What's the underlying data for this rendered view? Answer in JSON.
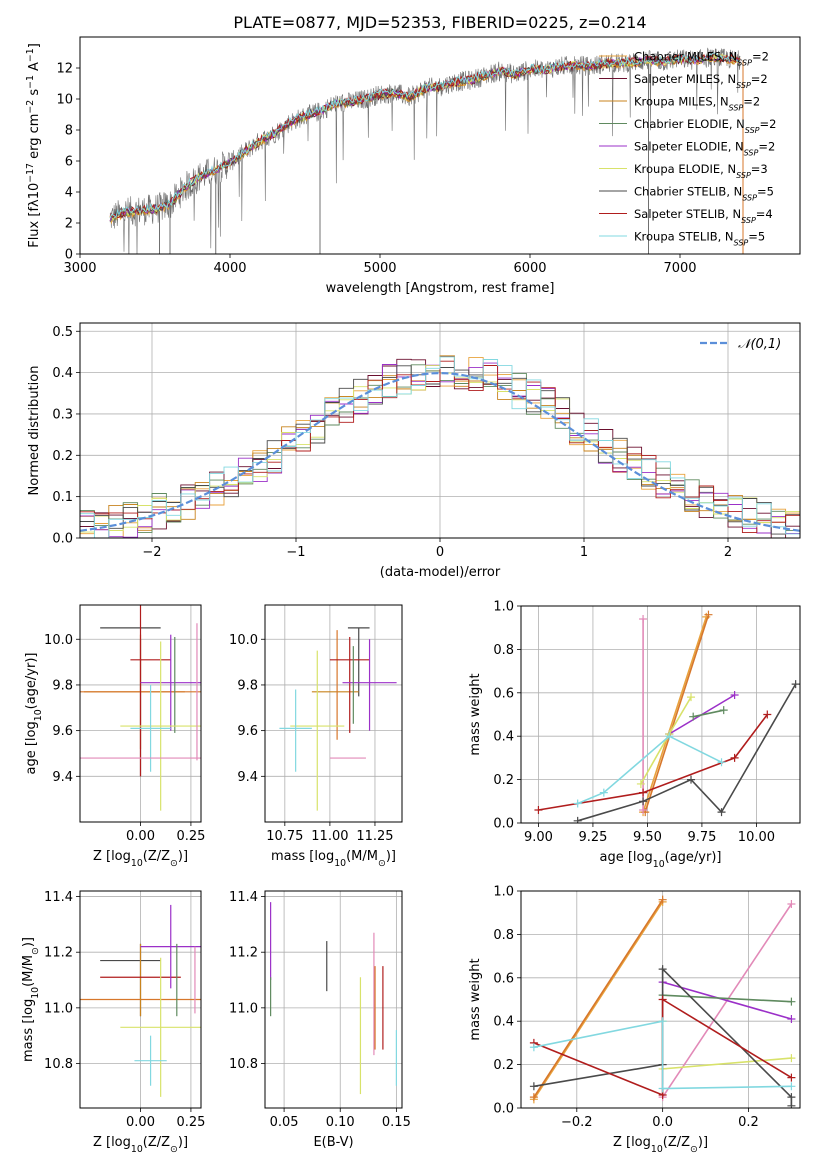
{
  "figure_title": "PLATE=0877, MJD=52353, FIBERID=0225, z=0.214",
  "palette": [
    "#e8a23d",
    "#6a0f2e",
    "#c8831e",
    "#5f8a5f",
    "#9b30c8",
    "#d8e26a",
    "#4a4a4a",
    "#b01d1d",
    "#82d8e0",
    "#e28ab8",
    "#d7772b",
    "#707070"
  ],
  "chart_data": [
    {
      "id": "spectrum",
      "type": "line",
      "title": "PLATE=0877, MJD=52353, FIBERID=0225, z=0.214",
      "xlabel": "wavelength [Angstrom, rest frame]",
      "ylabel": "Flux [fλ10⁻¹⁷ erg cm⁻² s⁻¹ A⁻¹]",
      "xlim": [
        3000,
        7800
      ],
      "ylim": [
        0,
        14
      ],
      "xticks": [
        3000,
        4000,
        5000,
        6000,
        7000
      ],
      "yticks": [
        0,
        2,
        4,
        6,
        8,
        10,
        12
      ],
      "observed_spectrum": {
        "color": "#707070",
        "x": [
          3200,
          3300,
          3400,
          3500,
          3600,
          3700,
          3800,
          3900,
          4000,
          4100,
          4200,
          4300,
          4400,
          4500,
          4600,
          4700,
          4800,
          4900,
          5000,
          5100,
          5200,
          5300,
          5400,
          5500,
          5600,
          5700,
          5800,
          5900,
          6000,
          6100,
          6200,
          6300,
          6400,
          6500,
          6600,
          6700,
          6800,
          6900,
          7000,
          7100,
          7200,
          7300,
          7400
        ],
        "y": [
          2.3,
          2.7,
          2.8,
          2.9,
          3.2,
          4.3,
          5.0,
          5.4,
          5.9,
          6.6,
          7.3,
          7.8,
          8.5,
          8.9,
          9.2,
          9.7,
          9.8,
          10.0,
          10.3,
          10.4,
          10.1,
          10.7,
          10.8,
          11.1,
          11.2,
          11.5,
          11.8,
          11.6,
          11.9,
          11.9,
          12.1,
          12.2,
          12.1,
          12.3,
          12.3,
          12.4,
          12.5,
          12.4,
          12.6,
          12.5,
          12.7,
          12.6,
          12.5
        ]
      },
      "series": [
        {
          "name": "Chabrier MILES, N_SSP=2",
          "color": "#e8a23d"
        },
        {
          "name": "Salpeter MILES, N_SSP=2",
          "color": "#6a0f2e"
        },
        {
          "name": "Kroupa MILES, N_SSP=2",
          "color": "#c8831e"
        },
        {
          "name": "Chabrier ELODIE, N_SSP=2",
          "color": "#5f8a5f"
        },
        {
          "name": "Salpeter ELODIE, N_SSP=2",
          "color": "#9b30c8"
        },
        {
          "name": "Kroupa ELODIE, N_SSP=3",
          "color": "#d8e26a"
        },
        {
          "name": "Chabrier STELIB, N_SSP=5",
          "color": "#4a4a4a"
        },
        {
          "name": "Salpeter STELIB, N_SSP=4",
          "color": "#b01d1d"
        },
        {
          "name": "Kroupa STELIB, N_SSP=5",
          "color": "#82d8e0"
        }
      ],
      "legend_position": "top-right"
    },
    {
      "id": "residuals",
      "type": "line",
      "xlabel": "(data-model)/error",
      "ylabel": "Normed distribution",
      "xlim": [
        -2.5,
        2.5
      ],
      "ylim": [
        0,
        0.52
      ],
      "xticks": [
        -2,
        -1,
        0,
        1,
        2
      ],
      "yticks": [
        0.0,
        0.1,
        0.2,
        0.3,
        0.4,
        0.5
      ],
      "reference": {
        "name": "𝒩(0,1)",
        "color": "#5b8fd9"
      },
      "histogram_bins": [
        -2.5,
        -2.4,
        -2.3,
        -2.2,
        -2.1,
        -2.0,
        -1.9,
        -1.8,
        -1.7,
        -1.6,
        -1.5,
        -1.4,
        -1.3,
        -1.2,
        -1.1,
        -1.0,
        -0.9,
        -0.8,
        -0.7,
        -0.6,
        -0.5,
        -0.4,
        -0.3,
        -0.2,
        -0.1,
        0.0,
        0.1,
        0.2,
        0.3,
        0.4,
        0.5,
        0.6,
        0.7,
        0.8,
        0.9,
        1.0,
        1.1,
        1.2,
        1.3,
        1.4,
        1.5,
        1.6,
        1.7,
        1.8,
        1.9,
        2.0,
        2.1,
        2.2,
        2.3,
        2.4,
        2.5
      ],
      "histogram_base": [
        0.03,
        0.035,
        0.04,
        0.045,
        0.055,
        0.065,
        0.075,
        0.09,
        0.105,
        0.12,
        0.14,
        0.16,
        0.18,
        0.2,
        0.225,
        0.25,
        0.27,
        0.3,
        0.32,
        0.34,
        0.355,
        0.375,
        0.39,
        0.4,
        0.405,
        0.41,
        0.405,
        0.4,
        0.39,
        0.375,
        0.355,
        0.34,
        0.32,
        0.3,
        0.27,
        0.25,
        0.225,
        0.2,
        0.18,
        0.16,
        0.14,
        0.12,
        0.105,
        0.09,
        0.075,
        0.065,
        0.055,
        0.045,
        0.035,
        0.03
      ],
      "legend_position": "top-right"
    },
    {
      "id": "age-vs-Z",
      "type": "scatter",
      "xlabel": "Z [log₁₀(Z/Z⊙)]",
      "ylabel": "age  [log₁₀(age/yr)]",
      "xlim": [
        -0.3,
        0.3
      ],
      "ylim": [
        9.2,
        10.15
      ],
      "xticks": [
        0.0,
        0.25
      ],
      "yticks": [
        9.4,
        9.6,
        9.8,
        10.0
      ],
      "points": [
        {
          "x": 0.0,
          "y": 9.7,
          "xerr": 0.0,
          "yerr": 0.3,
          "color": "#707070"
        },
        {
          "x": -0.05,
          "y": 10.05,
          "xerr": 0.15,
          "yerr": 0.0,
          "color": "#4a4a4a"
        },
        {
          "x": -0.03,
          "y": 9.77,
          "xerr": 0.25,
          "yerr": 0.0,
          "color": "#c8831e"
        },
        {
          "x": 0.0,
          "y": 9.77,
          "xerr": 0.3,
          "yerr": 0.25,
          "color": "#d7772b"
        },
        {
          "x": 0.05,
          "y": 9.91,
          "xerr": 0.1,
          "yerr": 0.0,
          "color": "#b01d1d"
        },
        {
          "x": 0.0,
          "y": 9.8,
          "xerr": 0.0,
          "yerr": 0.4,
          "color": "#b01d1d"
        },
        {
          "x": 0.15,
          "y": 9.81,
          "xerr": 0.15,
          "yerr": 0.21,
          "color": "#9b30c8"
        },
        {
          "x": 0.17,
          "y": 9.8,
          "xerr": 0.0,
          "yerr": 0.21,
          "color": "#5f8a5f"
        },
        {
          "x": 0.1,
          "y": 9.62,
          "xerr": 0.2,
          "yerr": 0.37,
          "color": "#d8e26a"
        },
        {
          "x": 0.05,
          "y": 9.61,
          "xerr": 0.1,
          "yerr": 0.19,
          "color": "#82d8e0"
        },
        {
          "x": 0.0,
          "y": 9.48,
          "xerr": 0.3,
          "yerr": 0.0,
          "color": "#e28ab8"
        },
        {
          "x": 0.28,
          "y": 9.77,
          "xerr": 0.0,
          "yerr": 0.3,
          "color": "#e28ab8"
        }
      ]
    },
    {
      "id": "age-vs-mass",
      "type": "scatter",
      "xlabel": "mass [log₁₀(M/M⊙)]",
      "ylabel": "",
      "xlim": [
        10.64,
        11.4
      ],
      "ylim": [
        9.2,
        10.15
      ],
      "xticks": [
        10.75,
        11.0,
        11.25
      ],
      "yticks": [
        9.4,
        9.6,
        9.8,
        10.0
      ],
      "points": [
        {
          "x": 11.16,
          "y": 10.05,
          "xerr": 0.06,
          "yerr": 0.0,
          "color": "#4a4a4a"
        },
        {
          "x": 11.16,
          "y": 9.9,
          "xerr": 0.0,
          "yerr": 0.15,
          "color": "#4a4a4a"
        },
        {
          "x": 11.03,
          "y": 9.77,
          "xerr": 0.13,
          "yerr": 0.0,
          "color": "#c8831e"
        },
        {
          "x": 11.04,
          "y": 9.8,
          "xerr": 0.0,
          "yerr": 0.24,
          "color": "#d7772b"
        },
        {
          "x": 11.11,
          "y": 9.91,
          "xerr": 0.11,
          "yerr": 0.0,
          "color": "#b01d1d"
        },
        {
          "x": 11.11,
          "y": 9.8,
          "xerr": 0.0,
          "yerr": 0.21,
          "color": "#b01d1d"
        },
        {
          "x": 11.22,
          "y": 9.81,
          "xerr": 0.15,
          "yerr": 0.0,
          "color": "#9b30c8"
        },
        {
          "x": 11.22,
          "y": 9.8,
          "xerr": 0.0,
          "yerr": 0.2,
          "color": "#9b30c8"
        },
        {
          "x": 10.93,
          "y": 9.62,
          "xerr": 0.15,
          "yerr": 0.0,
          "color": "#d8e26a"
        },
        {
          "x": 10.93,
          "y": 9.6,
          "xerr": 0.0,
          "yerr": 0.35,
          "color": "#d8e26a"
        },
        {
          "x": 10.81,
          "y": 9.61,
          "xerr": 0.09,
          "yerr": 0.0,
          "color": "#82d8e0"
        },
        {
          "x": 10.81,
          "y": 9.6,
          "xerr": 0.0,
          "yerr": 0.18,
          "color": "#82d8e0"
        },
        {
          "x": 11.1,
          "y": 9.48,
          "xerr": 0.1,
          "yerr": 0.0,
          "color": "#e28ab8"
        },
        {
          "x": 11.13,
          "y": 9.8,
          "xerr": 0.0,
          "yerr": 0.17,
          "color": "#5f8a5f"
        }
      ]
    },
    {
      "id": "weight-vs-age",
      "type": "line",
      "xlabel": "age  [log₁₀(age/yr)]",
      "ylabel": "mass weight",
      "xlim": [
        8.92,
        10.2
      ],
      "ylim": [
        0.0,
        1.0
      ],
      "xticks": [
        9.0,
        9.25,
        9.5,
        9.75,
        10.0
      ],
      "yticks": [
        0.0,
        0.2,
        0.4,
        0.6,
        0.8,
        1.0
      ],
      "series": [
        {
          "color": "#e8a23d",
          "x": [
            9.48,
            9.77
          ],
          "y": [
            0.05,
            0.95
          ]
        },
        {
          "color": "#d7772b",
          "x": [
            9.49,
            9.78
          ],
          "y": [
            0.05,
            0.96
          ]
        },
        {
          "color": "#e28ab8",
          "x": [
            9.48,
            9.48
          ],
          "y": [
            0.06,
            0.94
          ]
        },
        {
          "color": "#9b30c8",
          "x": [
            9.6,
            9.9
          ],
          "y": [
            0.41,
            0.59
          ]
        },
        {
          "color": "#5f8a5f",
          "x": [
            9.71,
            9.85
          ],
          "y": [
            0.49,
            0.52
          ]
        },
        {
          "color": "#d8e26a",
          "x": [
            9.47,
            9.6,
            9.7
          ],
          "y": [
            0.18,
            0.41,
            0.58
          ]
        },
        {
          "color": "#4a4a4a",
          "x": [
            9.18,
            9.48,
            9.7,
            9.84,
            10.18
          ],
          "y": [
            0.01,
            0.1,
            0.2,
            0.05,
            0.64
          ]
        },
        {
          "color": "#b01d1d",
          "x": [
            9.0,
            9.48,
            9.9,
            10.05
          ],
          "y": [
            0.06,
            0.14,
            0.3,
            0.5
          ]
        },
        {
          "color": "#82d8e0",
          "x": [
            9.18,
            9.3,
            9.6,
            9.84
          ],
          "y": [
            0.09,
            0.14,
            0.4,
            0.28
          ]
        }
      ]
    },
    {
      "id": "mass-vs-Z",
      "type": "scatter",
      "xlabel": "Z [log₁₀(Z/Z⊙)]",
      "ylabel": "mass [log₁₀(M/M⊙)]",
      "xlim": [
        -0.3,
        0.3
      ],
      "ylim": [
        10.64,
        11.42
      ],
      "xticks": [
        0.0,
        0.25
      ],
      "yticks": [
        10.8,
        11.0,
        11.2,
        11.4
      ],
      "points": [
        {
          "x": -0.05,
          "y": 11.17,
          "xerr": 0.15,
          "yerr": 0.0,
          "color": "#4a4a4a"
        },
        {
          "x": 0.0,
          "y": 11.1,
          "xerr": 0.0,
          "yerr": 0.13,
          "color": "#707070"
        },
        {
          "x": 0.0,
          "y": 11.03,
          "xerr": 0.3,
          "yerr": 0.0,
          "color": "#d7772b"
        },
        {
          "x": 0.0,
          "y": 11.1,
          "xerr": 0.0,
          "yerr": 0.13,
          "color": "#c8831e"
        },
        {
          "x": 0.0,
          "y": 11.11,
          "xerr": 0.2,
          "yerr": 0.0,
          "color": "#b01d1d"
        },
        {
          "x": 0.15,
          "y": 11.22,
          "xerr": 0.15,
          "yerr": 0.15,
          "color": "#9b30c8"
        },
        {
          "x": 0.18,
          "y": 11.1,
          "xerr": 0.0,
          "yerr": 0.13,
          "color": "#5f8a5f"
        },
        {
          "x": 0.1,
          "y": 10.93,
          "xerr": 0.2,
          "yerr": 0.25,
          "color": "#d8e26a"
        },
        {
          "x": 0.05,
          "y": 10.81,
          "xerr": 0.08,
          "yerr": 0.09,
          "color": "#82d8e0"
        },
        {
          "x": 0.27,
          "y": 11.1,
          "xerr": 0.0,
          "yerr": 0.12,
          "color": "#e28ab8"
        }
      ]
    },
    {
      "id": "mass-vs-ebv",
      "type": "scatter",
      "xlabel": "E(B-V)",
      "ylabel": "",
      "xlim": [
        0.033,
        0.155
      ],
      "ylim": [
        10.64,
        11.42
      ],
      "xticks": [
        0.05,
        0.1,
        0.15
      ],
      "yticks": [
        10.8,
        11.0,
        11.2,
        11.4
      ],
      "points": [
        {
          "x": 0.038,
          "y": 11.24,
          "yerr": 0.14,
          "color": "#9b30c8"
        },
        {
          "x": 0.038,
          "y": 11.04,
          "yerr": 0.07,
          "color": "#5f8a5f"
        },
        {
          "x": 0.088,
          "y": 11.15,
          "yerr": 0.09,
          "color": "#4a4a4a"
        },
        {
          "x": 0.118,
          "y": 10.9,
          "yerr": 0.21,
          "color": "#d8e26a"
        },
        {
          "x": 0.13,
          "y": 11.05,
          "yerr": 0.22,
          "color": "#e28ab8"
        },
        {
          "x": 0.131,
          "y": 11.0,
          "yerr": 0.15,
          "color": "#d7772b"
        },
        {
          "x": 0.138,
          "y": 11.0,
          "yerr": 0.15,
          "color": "#b01d1d"
        },
        {
          "x": 0.15,
          "y": 10.82,
          "yerr": 0.1,
          "color": "#82d8e0"
        }
      ]
    },
    {
      "id": "weight-vs-Z",
      "type": "line",
      "xlabel": "Z [log₁₀(Z/Z⊙)]",
      "ylabel": "mass weight",
      "xlim": [
        -0.33,
        0.32
      ],
      "ylim": [
        0.0,
        1.0
      ],
      "xticks": [
        -0.2,
        0.0,
        0.2
      ],
      "yticks": [
        0.0,
        0.2,
        0.4,
        0.6,
        0.8,
        1.0
      ],
      "series": [
        {
          "color": "#e8a23d",
          "x": [
            -0.3,
            0.0
          ],
          "y": [
            0.04,
            0.95
          ]
        },
        {
          "color": "#d7772b",
          "x": [
            -0.3,
            0.0
          ],
          "y": [
            0.05,
            0.96
          ]
        },
        {
          "color": "#e28ab8",
          "x": [
            0.0,
            0.3
          ],
          "y": [
            0.05,
            0.94
          ]
        },
        {
          "color": "#9b30c8",
          "x": [
            0.0,
            0.3
          ],
          "y": [
            0.58,
            0.41
          ]
        },
        {
          "color": "#5f8a5f",
          "x": [
            0.0,
            0.3
          ],
          "y": [
            0.52,
            0.49
          ]
        },
        {
          "color": "#d8e26a",
          "x": [
            0.0,
            0.0,
            0.3
          ],
          "y": [
            0.4,
            0.18,
            0.23
          ]
        },
        {
          "color": "#4a4a4a",
          "x": [
            -0.3,
            0.0,
            0.0,
            0.3,
            0.3
          ],
          "y": [
            0.1,
            0.2,
            0.64,
            0.05,
            0.01
          ]
        },
        {
          "color": "#b01d1d",
          "x": [
            -0.3,
            0.0,
            0.0,
            0.3
          ],
          "y": [
            0.3,
            0.06,
            0.5,
            0.14
          ]
        },
        {
          "color": "#82d8e0",
          "x": [
            -0.3,
            0.0,
            0.0,
            0.3
          ],
          "y": [
            0.28,
            0.4,
            0.09,
            0.1
          ]
        }
      ]
    }
  ]
}
